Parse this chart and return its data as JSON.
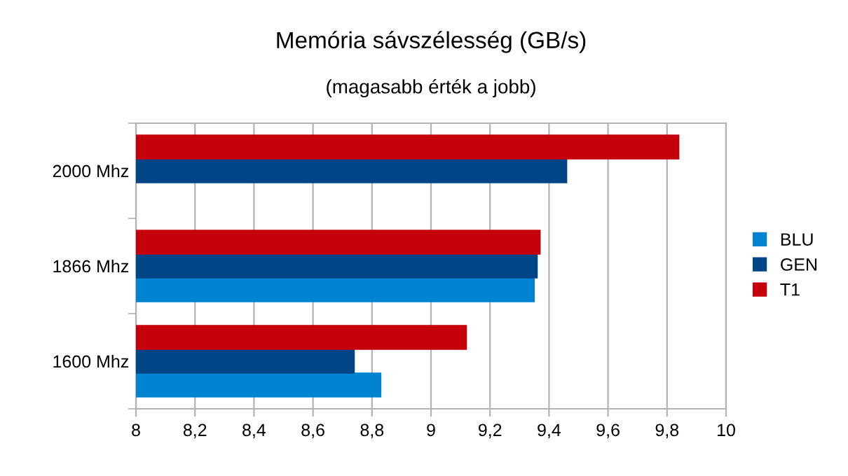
{
  "chart_data": {
    "type": "bar",
    "orientation": "horizontal",
    "title": "Memória sávszélesség (GB/s)",
    "subtitle": "(magasabb érték a jobb)",
    "categories": [
      "2000 Mhz",
      "1866 Mhz",
      "1600 Mhz"
    ],
    "series": [
      {
        "name": "BLU",
        "color": "#0083d1",
        "values": [
          null,
          9.35,
          8.83
        ]
      },
      {
        "name": "GEN",
        "color": "#004586",
        "values": [
          9.46,
          9.36,
          8.74
        ]
      },
      {
        "name": "T1",
        "color": "#c5000b",
        "values": [
          9.84,
          9.37,
          9.12
        ]
      }
    ],
    "xlim": [
      8,
      10
    ],
    "xticks": [
      8,
      {
        "value": 8.2,
        "label": "8,2"
      },
      {
        "value": 8.4,
        "label": "8,4"
      },
      {
        "value": 8.6,
        "label": "8,6"
      },
      {
        "value": 8.8,
        "label": "8,8"
      },
      9,
      {
        "value": 9.2,
        "label": "9,2"
      },
      {
        "value": 9.4,
        "label": "9,4"
      },
      {
        "value": 9.6,
        "label": "9,6"
      },
      {
        "value": 9.8,
        "label": "9,8"
      },
      10
    ],
    "grid": "x",
    "legend": "right"
  }
}
